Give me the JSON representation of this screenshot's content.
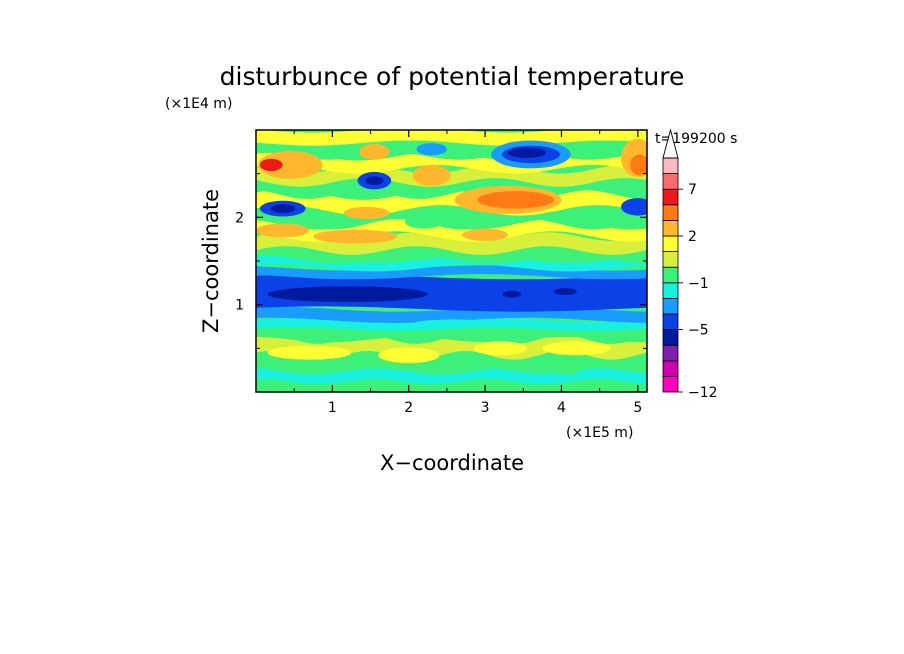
{
  "chart_data": {
    "type": "heatmap",
    "title": "disturbunce of potential temperature",
    "xlabel": "X−coordinate",
    "ylabel": "Z−coordinate",
    "x_unit": "(×1E5 m)",
    "y_unit": "(×1E4 m)",
    "time_label": "t=199200 s",
    "xlim": [
      0,
      5.12
    ],
    "ylim": [
      0,
      3
    ],
    "x_ticks": [
      {
        "value": 1,
        "label": "1"
      },
      {
        "value": 2,
        "label": "2"
      },
      {
        "value": 3,
        "label": "3"
      },
      {
        "value": 4,
        "label": "4"
      },
      {
        "value": 5,
        "label": "5"
      }
    ],
    "y_ticks": [
      {
        "value": 1,
        "label": "1"
      },
      {
        "value": 2,
        "label": "2"
      }
    ],
    "colorbar": {
      "extend": "max",
      "levels": [
        {
          "color": "#ff00c0"
        },
        {
          "color": "#d000b0"
        },
        {
          "color": "#8020b0"
        },
        {
          "color": "#001a9e"
        },
        {
          "color": "#0a42e8"
        },
        {
          "color": "#1a9cff"
        },
        {
          "color": "#19f0e0"
        },
        {
          "color": "#3cf07a"
        },
        {
          "color": "#d8f03c"
        },
        {
          "color": "#ffff33"
        },
        {
          "color": "#ffb82e"
        },
        {
          "color": "#ff7a14"
        },
        {
          "color": "#ee1a1a"
        },
        {
          "color": "#ff6a70"
        },
        {
          "color": "#ffb8c0"
        }
      ],
      "tick_labels": [
        {
          "label": "−12",
          "level_index": 0
        },
        {
          "label": "−5",
          "level_index": 4
        },
        {
          "label": "−1",
          "level_index": 7
        },
        {
          "label": "2",
          "level_index": 10
        },
        {
          "label": "7",
          "level_index": 13
        }
      ]
    },
    "bands": [
      {
        "z0": 0.0,
        "z1": 0.12,
        "color": "#3cf07a",
        "amp": 0.02,
        "k": 9,
        "phase": 0.3
      },
      {
        "z0": 0.12,
        "z1": 0.24,
        "color": "#19f0e0",
        "amp": 0.03,
        "k": 7,
        "phase": 1.1
      },
      {
        "z0": 0.24,
        "z1": 0.42,
        "color": "#3cf07a",
        "amp": 0.04,
        "k": 6,
        "phase": 2.0
      },
      {
        "z0": 0.42,
        "z1": 0.6,
        "color": "#d8f03c",
        "amp": 0.05,
        "k": 8,
        "phase": 0.7
      },
      {
        "z0": 0.6,
        "z1": 0.72,
        "color": "#3cf07a",
        "amp": 0.03,
        "k": 5,
        "phase": 1.7
      },
      {
        "z0": 0.72,
        "z1": 0.82,
        "color": "#19f0e0",
        "amp": 0.02,
        "k": 4,
        "phase": 0.2
      },
      {
        "z0": 0.82,
        "z1": 0.95,
        "color": "#1a9cff",
        "amp": 0.03,
        "k": 3,
        "phase": 1.3
      },
      {
        "z0": 0.95,
        "z1": 1.32,
        "color": "#0a42e8",
        "amp": 0.03,
        "k": 2,
        "phase": 0.5
      },
      {
        "z0": 1.32,
        "z1": 1.42,
        "color": "#1a9cff",
        "amp": 0.03,
        "k": 3,
        "phase": 2.4
      },
      {
        "z0": 1.42,
        "z1": 1.52,
        "color": "#19f0e0",
        "amp": 0.04,
        "k": 4,
        "phase": 0.9
      },
      {
        "z0": 1.52,
        "z1": 1.62,
        "color": "#3cf07a",
        "amp": 0.05,
        "k": 5,
        "phase": 1.5
      },
      {
        "z0": 1.62,
        "z1": 1.78,
        "color": "#d8f03c",
        "amp": 0.05,
        "k": 6,
        "phase": 0.1
      },
      {
        "z0": 1.78,
        "z1": 1.92,
        "color": "#ffff33",
        "amp": 0.06,
        "k": 5,
        "phase": 2.2
      },
      {
        "z0": 1.92,
        "z1": 2.08,
        "color": "#3cf07a",
        "amp": 0.06,
        "k": 6,
        "phase": 1.0
      },
      {
        "z0": 2.08,
        "z1": 2.26,
        "color": "#ffff33",
        "amp": 0.06,
        "k": 5,
        "phase": 0.4
      },
      {
        "z0": 2.26,
        "z1": 2.4,
        "color": "#3cf07a",
        "amp": 0.05,
        "k": 7,
        "phase": 1.8
      },
      {
        "z0": 2.4,
        "z1": 2.55,
        "color": "#d8f03c",
        "amp": 0.05,
        "k": 6,
        "phase": 2.6
      },
      {
        "z0": 2.55,
        "z1": 2.7,
        "color": "#ffff33",
        "amp": 0.05,
        "k": 5,
        "phase": 0.6
      },
      {
        "z0": 2.7,
        "z1": 2.85,
        "color": "#3cf07a",
        "amp": 0.04,
        "k": 6,
        "phase": 1.2
      },
      {
        "z0": 2.85,
        "z1": 3.0,
        "color": "#ffff33",
        "amp": 0.03,
        "k": 4,
        "phase": 2.9
      }
    ],
    "blobs": [
      {
        "x": 1.2,
        "z": 1.12,
        "rx": 1.05,
        "rz": 0.09,
        "color": "#001a9e"
      },
      {
        "x": 3.35,
        "z": 1.12,
        "rx": 0.12,
        "rz": 0.04,
        "color": "#001a9e"
      },
      {
        "x": 4.05,
        "z": 1.15,
        "rx": 0.15,
        "rz": 0.04,
        "color": "#001a9e"
      },
      {
        "x": 0.35,
        "z": 2.1,
        "rx": 0.3,
        "rz": 0.09,
        "color": "#0a42e8"
      },
      {
        "x": 0.35,
        "z": 2.1,
        "rx": 0.16,
        "rz": 0.05,
        "color": "#001a9e"
      },
      {
        "x": 1.55,
        "z": 2.42,
        "rx": 0.22,
        "rz": 0.1,
        "color": "#0a42e8"
      },
      {
        "x": 1.55,
        "z": 2.42,
        "rx": 0.12,
        "rz": 0.05,
        "color": "#001a9e"
      },
      {
        "x": 5.0,
        "z": 2.12,
        "rx": 0.22,
        "rz": 0.1,
        "color": "#0a42e8"
      },
      {
        "x": 3.6,
        "z": 2.72,
        "rx": 0.52,
        "rz": 0.16,
        "color": "#1a9cff"
      },
      {
        "x": 3.6,
        "z": 2.72,
        "rx": 0.38,
        "rz": 0.1,
        "color": "#0a42e8"
      },
      {
        "x": 3.55,
        "z": 2.74,
        "rx": 0.25,
        "rz": 0.06,
        "color": "#001a9e"
      },
      {
        "x": 2.3,
        "z": 2.78,
        "rx": 0.2,
        "rz": 0.07,
        "color": "#1a9cff"
      },
      {
        "x": 3.3,
        "z": 2.2,
        "rx": 0.7,
        "rz": 0.16,
        "color": "#ffb82e"
      },
      {
        "x": 3.4,
        "z": 2.2,
        "rx": 0.5,
        "rz": 0.1,
        "color": "#ff7a14"
      },
      {
        "x": 0.45,
        "z": 2.6,
        "rx": 0.42,
        "rz": 0.16,
        "color": "#ffb82e"
      },
      {
        "x": 0.2,
        "z": 2.6,
        "rx": 0.15,
        "rz": 0.07,
        "color": "#ee1a1a"
      },
      {
        "x": 1.55,
        "z": 2.75,
        "rx": 0.2,
        "rz": 0.09,
        "color": "#ffb82e"
      },
      {
        "x": 2.3,
        "z": 2.48,
        "rx": 0.25,
        "rz": 0.12,
        "color": "#ffb82e"
      },
      {
        "x": 5.0,
        "z": 2.68,
        "rx": 0.22,
        "rz": 0.22,
        "color": "#ffb82e"
      },
      {
        "x": 5.02,
        "z": 2.6,
        "rx": 0.12,
        "rz": 0.12,
        "color": "#ff7a14"
      },
      {
        "x": 1.3,
        "z": 1.78,
        "rx": 0.55,
        "rz": 0.08,
        "color": "#ffb82e"
      },
      {
        "x": 3.0,
        "z": 1.8,
        "rx": 0.3,
        "rz": 0.07,
        "color": "#ffb82e"
      },
      {
        "x": 1.45,
        "z": 2.05,
        "rx": 0.3,
        "rz": 0.07,
        "color": "#ffb82e"
      },
      {
        "x": 2.2,
        "z": 1.95,
        "rx": 0.25,
        "rz": 0.08,
        "color": "#3cf07a"
      },
      {
        "x": 0.35,
        "z": 1.85,
        "rx": 0.35,
        "rz": 0.08,
        "color": "#ffb82e"
      },
      {
        "x": 0.7,
        "z": 0.45,
        "rx": 0.55,
        "rz": 0.08,
        "color": "#ffff33"
      },
      {
        "x": 2.0,
        "z": 0.42,
        "rx": 0.4,
        "rz": 0.09,
        "color": "#ffff33"
      },
      {
        "x": 3.2,
        "z": 0.5,
        "rx": 0.35,
        "rz": 0.08,
        "color": "#ffff33"
      },
      {
        "x": 4.2,
        "z": 0.5,
        "rx": 0.45,
        "rz": 0.08,
        "color": "#ffff33"
      },
      {
        "x": 2.6,
        "z": 0.32,
        "rx": 0.3,
        "rz": 0.05,
        "color": "#3cf07a"
      },
      {
        "x": 1.8,
        "z": 0.2,
        "rx": 0.35,
        "rz": 0.05,
        "color": "#19f0e0"
      },
      {
        "x": 4.5,
        "z": 0.22,
        "rx": 0.3,
        "rz": 0.05,
        "color": "#19f0e0"
      },
      {
        "x": 2.6,
        "z": 0.78,
        "rx": 0.55,
        "rz": 0.05,
        "color": "#19f0e0"
      }
    ]
  }
}
